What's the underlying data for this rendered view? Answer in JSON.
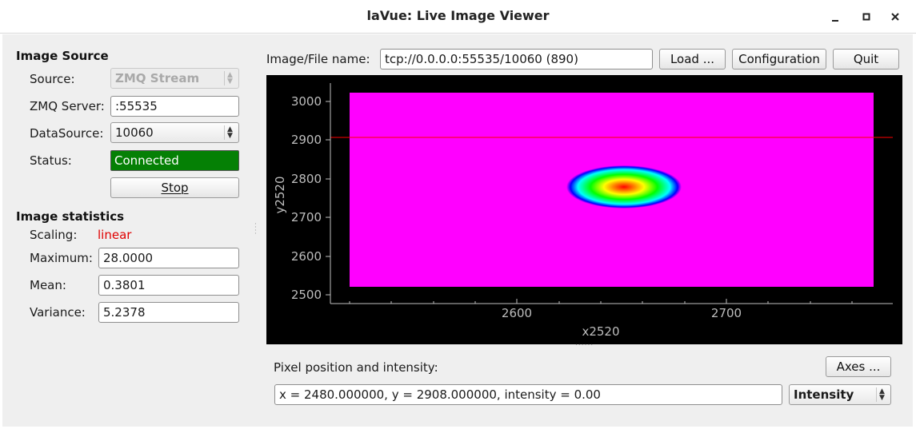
{
  "window": {
    "title": "laVue: Live Image Viewer"
  },
  "image_source": {
    "heading": "Image Source",
    "source_label": "Source:",
    "source_value": "ZMQ Stream",
    "zmq_label": "ZMQ Server:",
    "zmq_value": ":55535",
    "datasource_label": "DataSource:",
    "datasource_value": "10060",
    "status_label": "Status:",
    "status_value": "Connected",
    "status_color": "#058005",
    "stop_label": "Stop"
  },
  "image_statistics": {
    "heading": "Image statistics",
    "scaling_label": "Scaling:",
    "scaling_value": "linear",
    "scaling_color": "#e00000",
    "maximum_label": "Maximum:",
    "maximum_value": "28.0000",
    "mean_label": "Mean:",
    "mean_value": "0.3801",
    "variance_label": "Variance:",
    "variance_value": "5.2378"
  },
  "toolbar": {
    "file_label": "Image/File name:",
    "file_value": "tcp://0.0.0.0:55535/10060 (890)",
    "load_label": "Load ...",
    "config_label": "Configuration",
    "quit_label": "Quit"
  },
  "image_plot": {
    "x_axis_label": "x2520",
    "y_axis_label": "y2520",
    "x_ticks": [
      "2600",
      "2700"
    ],
    "y_ticks": [
      "3000",
      "2900",
      "2800",
      "2700",
      "2600",
      "2500"
    ],
    "background_color": "#ff00ff",
    "crosshair_y": 2908,
    "peak_center": [
      2652,
      2780
    ]
  },
  "pixel_info": {
    "heading": "Pixel position and intensity:",
    "axes_label": "Axes ...",
    "value": "x = 2480.000000, y = 2908.000000, intensity = 0.00",
    "mode_value": "Intensity"
  }
}
